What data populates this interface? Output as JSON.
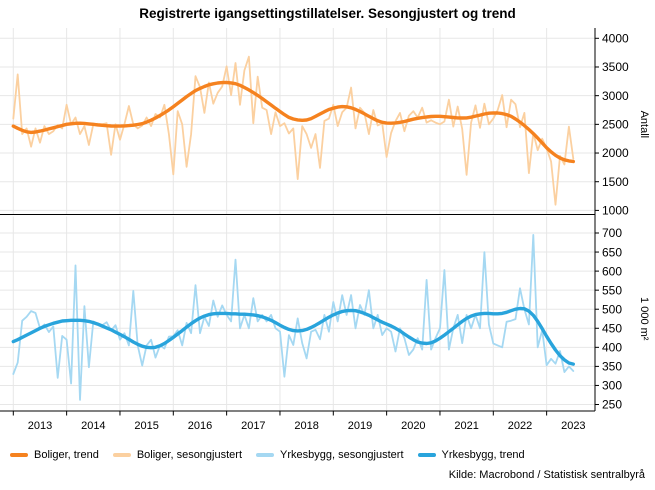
{
  "title": "Registrerte igangsettingstillatelser. Sesongjustert og trend",
  "source": "Kilde: Macrobond / Statistisk sentralbyrå",
  "legend": {
    "position": "bottom-left",
    "items": [
      {
        "label": "Boliger, trend",
        "color": "#f5821f"
      },
      {
        "label": "Boliger, sesongjustert",
        "color": "#fbd0a0"
      },
      {
        "label": "Yrkesbygg, sesongjustert",
        "color": "#a5d8f2"
      },
      {
        "label": "Yrkesbygg, trend",
        "color": "#29a4dc"
      }
    ]
  },
  "x_axis": {
    "years": [
      2013,
      2014,
      2015,
      2016,
      2017,
      2018,
      2019,
      2020,
      2021,
      2022,
      2023
    ]
  },
  "chart_data": [
    {
      "type": "line",
      "panel": "top",
      "title": "",
      "xlabel": "",
      "ylabel": "Antall",
      "ylim": [
        1000,
        4000
      ],
      "ytick_step": 500,
      "xlim": [
        2012.75,
        2023.91
      ],
      "grid": true,
      "x_start": 2013.0,
      "x_step": 0.0833333,
      "x_end": 2023.5,
      "series": [
        {
          "name": "Boliger, sesongjustert",
          "color": "#fbd0a0",
          "width": 1.8,
          "values": [
            2600,
            3370,
            2330,
            2430,
            2110,
            2430,
            2180,
            2470,
            2330,
            2380,
            2490,
            2430,
            2840,
            2500,
            2620,
            2330,
            2470,
            2140,
            2500,
            2510,
            2500,
            2520,
            1970,
            2500,
            2230,
            2500,
            2820,
            2500,
            2430,
            2480,
            2620,
            2470,
            2680,
            2620,
            2840,
            2330,
            1630,
            2730,
            2500,
            1760,
            2330,
            3340,
            3150,
            2700,
            3230,
            2860,
            3050,
            3160,
            3510,
            3010,
            3570,
            2840,
            3440,
            3680,
            2520,
            3330,
            2790,
            2750,
            2330,
            2710,
            2470,
            2520,
            2340,
            2430,
            1545,
            2470,
            2330,
            2090,
            2330,
            1740,
            2560,
            2600,
            2840,
            2470,
            2710,
            2790,
            3140,
            2430,
            2790,
            2700,
            2330,
            2750,
            2480,
            2520,
            1930,
            2350,
            2555,
            2700,
            2380,
            2650,
            2730,
            2620,
            2790,
            2530,
            2570,
            2530,
            2500,
            2550,
            2930,
            2460,
            2810,
            2420,
            1620,
            2530,
            2830,
            2440,
            2860,
            2500,
            2600,
            2750,
            3010,
            2450,
            2930,
            2850,
            2450,
            2700,
            1650,
            2350,
            2050,
            2250,
            2080,
            1850,
            1100,
            1950,
            1800,
            2460,
            1900
          ]
        },
        {
          "name": "Boliger, trend",
          "color": "#f5821f",
          "width": 3.4,
          "values": [
            2470,
            2432,
            2396,
            2370,
            2360,
            2366,
            2382,
            2400,
            2420,
            2440,
            2460,
            2480,
            2500,
            2510,
            2518,
            2520,
            2516,
            2508,
            2500,
            2491,
            2483,
            2477,
            2472,
            2470,
            2470,
            2473,
            2478,
            2486,
            2497,
            2512,
            2540,
            2572,
            2610,
            2655,
            2702,
            2752,
            2808,
            2866,
            2925,
            2983,
            3038,
            3088,
            3126,
            3160,
            3190,
            3206,
            3220,
            3228,
            3230,
            3222,
            3208,
            3180,
            3142,
            3100,
            3054,
            3004,
            2950,
            2895,
            2838,
            2780,
            2724,
            2670,
            2622,
            2594,
            2578,
            2570,
            2576,
            2600,
            2638,
            2680,
            2720,
            2758,
            2782,
            2800,
            2810,
            2806,
            2788,
            2760,
            2724,
            2684,
            2640,
            2600,
            2562,
            2536,
            2522,
            2520,
            2526,
            2536,
            2550,
            2570,
            2590,
            2606,
            2618,
            2628,
            2636,
            2640,
            2640,
            2634,
            2627,
            2620,
            2613,
            2610,
            2613,
            2624,
            2644,
            2662,
            2680,
            2694,
            2700,
            2698,
            2688,
            2670,
            2640,
            2594,
            2540,
            2478,
            2410,
            2338,
            2260,
            2176,
            2092,
            2020,
            1960,
            1914,
            1882,
            1862,
            1852
          ]
        }
      ]
    },
    {
      "type": "line",
      "panel": "bottom",
      "title": "",
      "xlabel": "",
      "ylabel": "1 000 m²",
      "ylim": [
        250,
        700
      ],
      "ytick_step": 50,
      "xlim": [
        2012.75,
        2023.91
      ],
      "grid": true,
      "x_start": 2013.0,
      "x_step": 0.0833333,
      "x_end": 2023.5,
      "series": [
        {
          "name": "Yrkesbygg, sesongjustert",
          "color": "#a5d8f2",
          "width": 1.8,
          "values": [
            330,
            360,
            470,
            480,
            495,
            490,
            450,
            460,
            440,
            455,
            320,
            430,
            420,
            305,
            615,
            262,
            508,
            348,
            468,
            462,
            458,
            466,
            444,
            458,
            420,
            437,
            405,
            548,
            405,
            352,
            405,
            420,
            373,
            405,
            397,
            428,
            429,
            445,
            405,
            464,
            437,
            563,
            437,
            480,
            456,
            523,
            480,
            510,
            485,
            468,
            630,
            450,
            485,
            450,
            529,
            468,
            485,
            468,
            485,
            450,
            441,
            323,
            432,
            406,
            476,
            411,
            371,
            441,
            446,
            421,
            485,
            441,
            519,
            468,
            537,
            485,
            537,
            450,
            511,
            485,
            550,
            450,
            485,
            432,
            450,
            441,
            389,
            450,
            424,
            380,
            394,
            424,
            394,
            577,
            394,
            424,
            450,
            603,
            394,
            450,
            485,
            411,
            485,
            450,
            485,
            450,
            650,
            460,
            410,
            405,
            400,
            467,
            470,
            474,
            555,
            500,
            460,
            695,
            400,
            445,
            353,
            370,
            357,
            390,
            335,
            350,
            338
          ]
        },
        {
          "name": "Yrkesbygg, trend",
          "color": "#29a4dc",
          "width": 3.4,
          "values": [
            415,
            420,
            426,
            432,
            438,
            444,
            450,
            455,
            459,
            463,
            466,
            469,
            470,
            471,
            471,
            471,
            470,
            468,
            465,
            461,
            456,
            451,
            446,
            440,
            434,
            428,
            421,
            414,
            408,
            403,
            400,
            399,
            400,
            404,
            410,
            418,
            426,
            435,
            444,
            453,
            462,
            470,
            477,
            482,
            486,
            488,
            489,
            489,
            489,
            488,
            488,
            487,
            487,
            486,
            485,
            483,
            480,
            476,
            471,
            465,
            458,
            452,
            447,
            444,
            443,
            444,
            447,
            452,
            458,
            465,
            472,
            479,
            485,
            490,
            494,
            496,
            497,
            496,
            493,
            489,
            484,
            478,
            472,
            466,
            461,
            456,
            450,
            443,
            435,
            427,
            420,
            414,
            411,
            410,
            412,
            417,
            424,
            432,
            441,
            450,
            459,
            468,
            476,
            482,
            486,
            488,
            489,
            489,
            488,
            488,
            489,
            492,
            496,
            500,
            502,
            501,
            495,
            484,
            468,
            449,
            429,
            410,
            393,
            378,
            367,
            359,
            356
          ]
        }
      ]
    }
  ]
}
